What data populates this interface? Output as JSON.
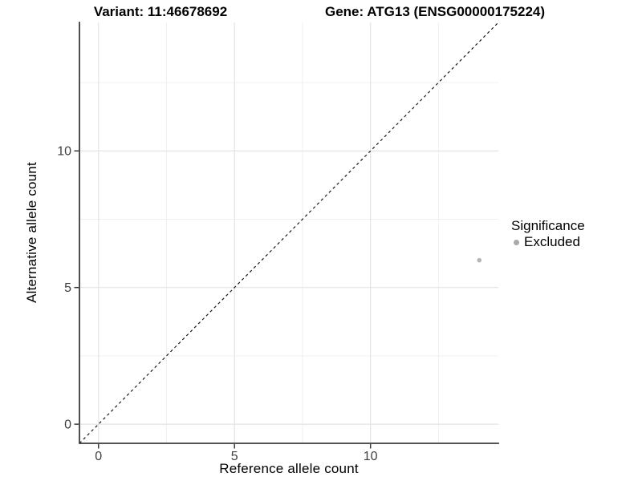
{
  "chart_data": {
    "type": "scatter",
    "title_left": "Variant: 11:46678692",
    "title_right": "Gene: ATG13 (ENSG00000175224)",
    "xlabel": "Reference allele count",
    "ylabel": "Alternative allele count",
    "xlim": [
      -0.7,
      14.7
    ],
    "ylim": [
      -0.7,
      14.7
    ],
    "xticks": [
      0,
      5,
      10
    ],
    "yticks": [
      0,
      5,
      10
    ],
    "xminor": [
      2.5,
      7.5,
      12.5
    ],
    "yminor": [
      2.5,
      7.5,
      12.5
    ],
    "grid": "major and minor gridlines, white panel background",
    "series": [
      {
        "name": "Excluded",
        "color": "#b5b5b5",
        "points": [
          {
            "x": 14,
            "y": 6
          }
        ]
      }
    ],
    "reference_line": {
      "kind": "identity y=x",
      "style": "dashed",
      "color": "#1a1a1a",
      "x1": -0.7,
      "y1": -0.7,
      "x2": 14.7,
      "y2": 14.7
    },
    "legend": {
      "title": "Significance",
      "position": "right",
      "entries": [
        {
          "label": "Excluded",
          "color": "#a9a9a9"
        }
      ]
    }
  },
  "colors": {
    "background": "#ffffff",
    "axis_line": "#3c3c3c",
    "tick_label": "#404040",
    "grid_major": "#e4e4e4",
    "grid_minor": "#f0f0f0",
    "title_text": "#000000"
  }
}
